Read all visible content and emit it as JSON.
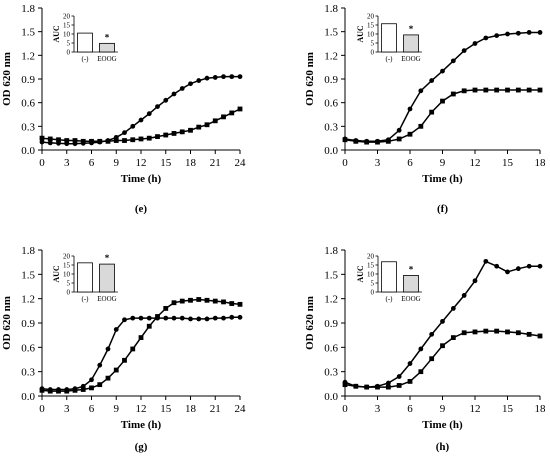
{
  "chart_data": [
    {
      "panel_label": "(e)",
      "type": "line",
      "xlabel": "Time (h)",
      "ylabel": "OD 620 nm",
      "xlim": [
        0,
        24
      ],
      "ylim": [
        0,
        1.8
      ],
      "xticks": [
        0,
        3,
        6,
        9,
        12,
        15,
        18,
        21,
        24
      ],
      "yticks": [
        0.0,
        0.3,
        0.6,
        0.9,
        1.2,
        1.5,
        1.8
      ],
      "series": [
        {
          "marker": "circle",
          "x": [
            0,
            1,
            2,
            3,
            4,
            5,
            6,
            7,
            8,
            9,
            10,
            11,
            12,
            13,
            14,
            15,
            16,
            17,
            18,
            19,
            20,
            21,
            22,
            23,
            24
          ],
          "y": [
            0.1,
            0.09,
            0.085,
            0.08,
            0.08,
            0.085,
            0.09,
            0.1,
            0.12,
            0.16,
            0.22,
            0.3,
            0.38,
            0.46,
            0.55,
            0.63,
            0.71,
            0.78,
            0.84,
            0.88,
            0.91,
            0.92,
            0.93,
            0.93,
            0.93
          ]
        },
        {
          "marker": "square",
          "x": [
            0,
            1,
            2,
            3,
            4,
            5,
            6,
            7,
            8,
            9,
            10,
            11,
            12,
            13,
            14,
            15,
            16,
            17,
            18,
            19,
            20,
            21,
            22,
            23,
            24
          ],
          "y": [
            0.15,
            0.14,
            0.13,
            0.12,
            0.12,
            0.11,
            0.11,
            0.11,
            0.11,
            0.12,
            0.12,
            0.13,
            0.14,
            0.15,
            0.17,
            0.19,
            0.21,
            0.23,
            0.25,
            0.29,
            0.32,
            0.37,
            0.42,
            0.47,
            0.52
          ]
        }
      ],
      "inset": {
        "type": "bar",
        "ylabel": "AUC",
        "ylim": [
          0,
          20
        ],
        "yticks": [
          0,
          5,
          10,
          15,
          20
        ],
        "categories": [
          "(-)",
          "EOOG"
        ],
        "values": [
          10.5,
          4.8
        ],
        "fills": [
          "#ffffff",
          "#d9d9d9"
        ],
        "significance": "*"
      }
    },
    {
      "panel_label": "(f)",
      "type": "line",
      "xlabel": "Time (h)",
      "ylabel": "OD 620 nm",
      "xlim": [
        0,
        18
      ],
      "ylim": [
        0,
        1.8
      ],
      "xticks": [
        0,
        3,
        6,
        9,
        12,
        15,
        18
      ],
      "yticks": [
        0.0,
        0.3,
        0.6,
        0.9,
        1.2,
        1.5,
        1.8
      ],
      "series": [
        {
          "marker": "circle",
          "x": [
            0,
            1,
            2,
            3,
            4,
            5,
            6,
            7,
            8,
            9,
            10,
            11,
            12,
            13,
            14,
            15,
            16,
            17,
            18
          ],
          "y": [
            0.14,
            0.12,
            0.11,
            0.11,
            0.13,
            0.25,
            0.52,
            0.75,
            0.88,
            1.0,
            1.13,
            1.26,
            1.35,
            1.42,
            1.45,
            1.47,
            1.48,
            1.49,
            1.49
          ]
        },
        {
          "marker": "square",
          "x": [
            0,
            1,
            2,
            3,
            4,
            5,
            6,
            7,
            8,
            9,
            10,
            11,
            12,
            13,
            14,
            15,
            16,
            17,
            18
          ],
          "y": [
            0.13,
            0.11,
            0.1,
            0.1,
            0.11,
            0.14,
            0.2,
            0.3,
            0.48,
            0.62,
            0.71,
            0.75,
            0.76,
            0.76,
            0.76,
            0.76,
            0.76,
            0.76,
            0.76
          ]
        }
      ],
      "inset": {
        "type": "bar",
        "ylabel": "AUC",
        "ylim": [
          0,
          20
        ],
        "yticks": [
          0,
          5,
          10,
          15,
          20
        ],
        "categories": [
          "(-)",
          "EOOG"
        ],
        "values": [
          15.7,
          9.5
        ],
        "fills": [
          "#ffffff",
          "#d9d9d9"
        ],
        "significance": "*"
      }
    },
    {
      "panel_label": "(g)",
      "type": "line",
      "xlabel": "Time (h)",
      "ylabel": "OD 620 nm",
      "xlim": [
        0,
        24
      ],
      "ylim": [
        0,
        1.8
      ],
      "xticks": [
        0,
        3,
        6,
        9,
        12,
        15,
        18,
        21,
        24
      ],
      "yticks": [
        0.0,
        0.3,
        0.6,
        0.9,
        1.2,
        1.5,
        1.8
      ],
      "series": [
        {
          "marker": "circle",
          "x": [
            0,
            1,
            2,
            3,
            4,
            5,
            6,
            7,
            8,
            9,
            10,
            11,
            12,
            13,
            14,
            15,
            16,
            17,
            18,
            19,
            20,
            21,
            22,
            23,
            24
          ],
          "y": [
            0.09,
            0.08,
            0.08,
            0.08,
            0.09,
            0.12,
            0.2,
            0.38,
            0.58,
            0.82,
            0.94,
            0.96,
            0.96,
            0.96,
            0.96,
            0.96,
            0.96,
            0.96,
            0.95,
            0.95,
            0.95,
            0.96,
            0.96,
            0.97,
            0.97
          ]
        },
        {
          "marker": "square",
          "x": [
            0,
            1,
            2,
            3,
            4,
            5,
            6,
            7,
            8,
            9,
            10,
            11,
            12,
            13,
            14,
            15,
            16,
            17,
            18,
            19,
            20,
            21,
            22,
            23,
            24
          ],
          "y": [
            0.07,
            0.06,
            0.06,
            0.06,
            0.07,
            0.08,
            0.1,
            0.14,
            0.22,
            0.32,
            0.44,
            0.58,
            0.72,
            0.86,
            0.98,
            1.08,
            1.15,
            1.17,
            1.18,
            1.19,
            1.18,
            1.17,
            1.16,
            1.14,
            1.13
          ]
        }
      ],
      "inset": {
        "type": "bar",
        "ylabel": "AUC",
        "ylim": [
          0,
          20
        ],
        "yticks": [
          0,
          5,
          10,
          15,
          20
        ],
        "categories": [
          "(-)",
          "EOOG"
        ],
        "values": [
          16.2,
          15.5
        ],
        "fills": [
          "#ffffff",
          "#d9d9d9"
        ],
        "significance": "*"
      }
    },
    {
      "panel_label": "(h)",
      "type": "line",
      "xlabel": "Time (h)",
      "ylabel": "OD 620 nm",
      "xlim": [
        0,
        18
      ],
      "ylim": [
        0,
        1.8
      ],
      "xticks": [
        0,
        3,
        6,
        9,
        12,
        15,
        18
      ],
      "yticks": [
        0.0,
        0.3,
        0.6,
        0.9,
        1.2,
        1.5,
        1.8
      ],
      "series": [
        {
          "marker": "circle",
          "x": [
            0,
            1,
            2,
            3,
            4,
            5,
            6,
            7,
            8,
            9,
            10,
            11,
            12,
            13,
            14,
            15,
            16,
            17,
            18
          ],
          "y": [
            0.17,
            0.12,
            0.11,
            0.12,
            0.16,
            0.24,
            0.4,
            0.58,
            0.76,
            0.92,
            1.08,
            1.24,
            1.42,
            1.66,
            1.6,
            1.53,
            1.57,
            1.6,
            1.6
          ]
        },
        {
          "marker": "square",
          "x": [
            0,
            1,
            2,
            3,
            4,
            5,
            6,
            7,
            8,
            9,
            10,
            11,
            12,
            13,
            14,
            15,
            16,
            17,
            18
          ],
          "y": [
            0.14,
            0.12,
            0.11,
            0.11,
            0.11,
            0.13,
            0.18,
            0.3,
            0.46,
            0.62,
            0.72,
            0.78,
            0.79,
            0.8,
            0.8,
            0.79,
            0.78,
            0.76,
            0.74
          ]
        }
      ],
      "inset": {
        "type": "bar",
        "ylabel": "AUC",
        "ylim": [
          0,
          20
        ],
        "yticks": [
          0,
          5,
          10,
          15,
          20
        ],
        "categories": [
          "(-)",
          "EOOG"
        ],
        "values": [
          16.8,
          9.2
        ],
        "fills": [
          "#ffffff",
          "#d9d9d9"
        ],
        "significance": "*"
      }
    }
  ]
}
